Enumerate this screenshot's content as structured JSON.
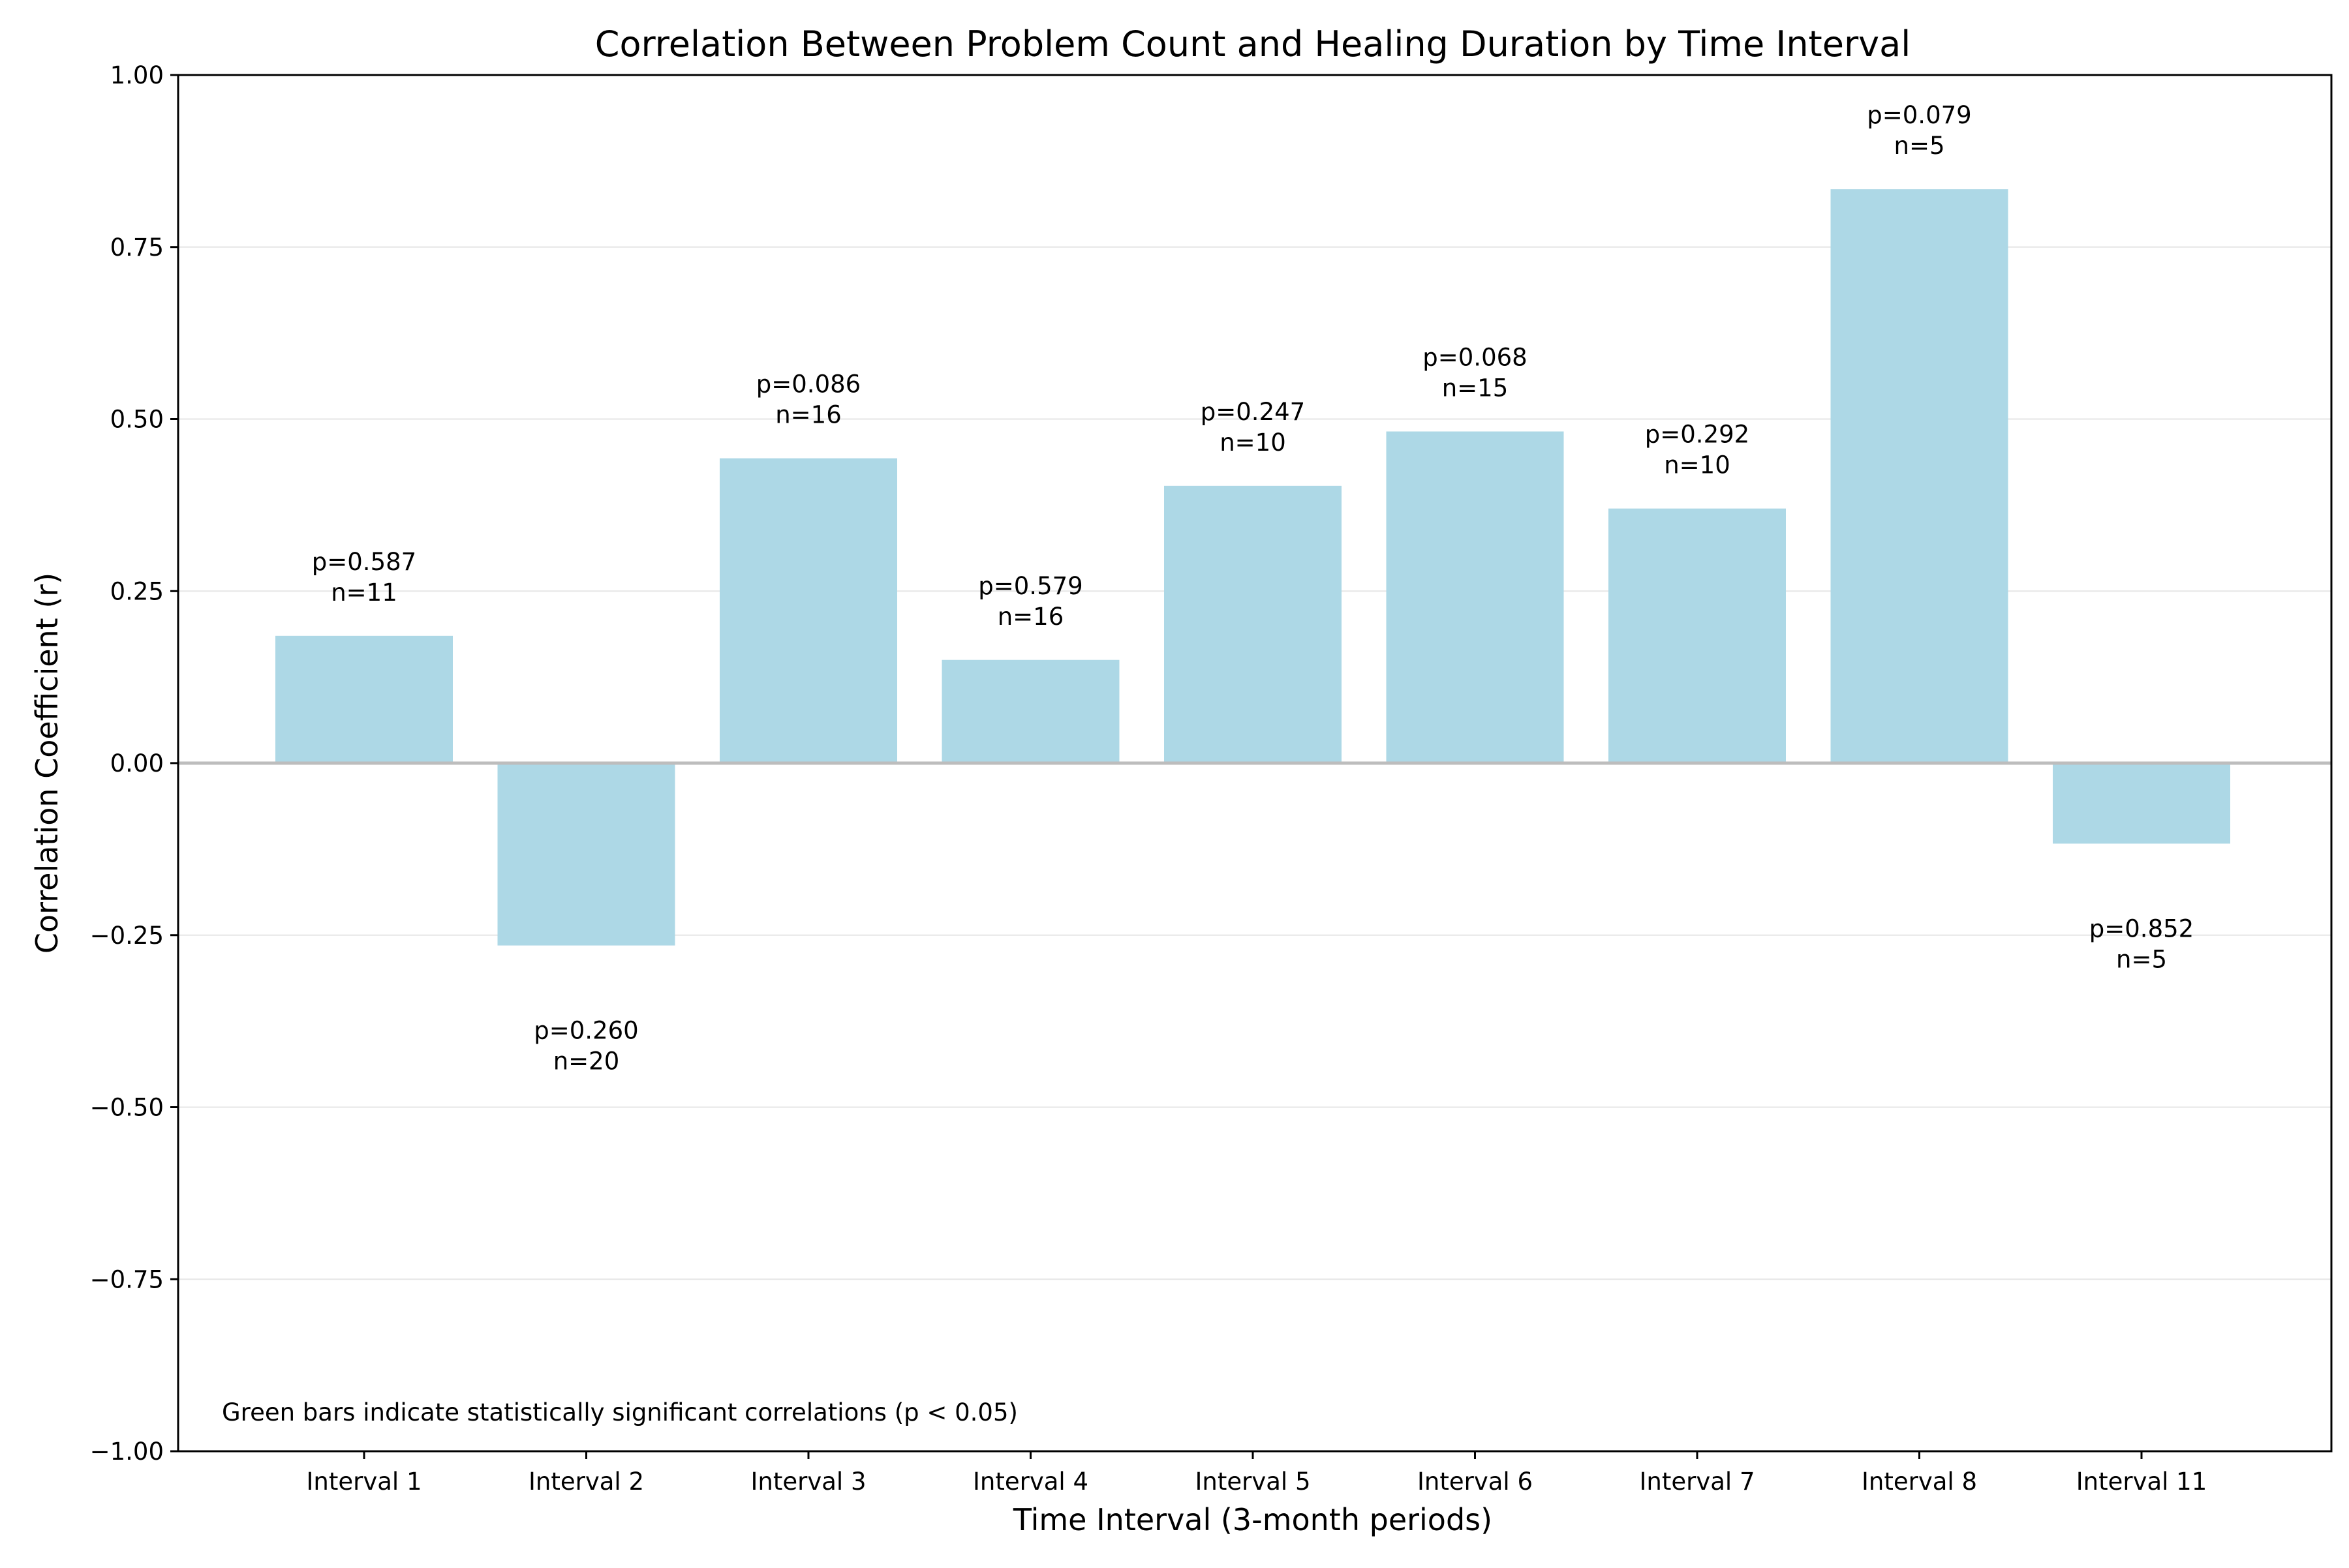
{
  "chart_data": {
    "type": "bar",
    "title": "Correlation Between Problem Count and Healing Duration by Time Interval",
    "xlabel": "Time Interval (3-month periods)",
    "ylabel": "Correlation Coefficient (r)",
    "ylim": [
      -1.0,
      1.0
    ],
    "yticks": [
      -1.0,
      -0.75,
      -0.5,
      -0.25,
      0.0,
      0.25,
      0.5,
      0.75,
      1.0
    ],
    "ytick_labels": [
      "−1.00",
      "−0.75",
      "−0.50",
      "−0.25",
      "0.00",
      "0.25",
      "0.50",
      "0.75",
      "1.00"
    ],
    "grid": "horizontal",
    "categories": [
      "Interval 1",
      "Interval 2",
      "Interval 3",
      "Interval 4",
      "Interval 5",
      "Interval 6",
      "Interval 7",
      "Interval 8",
      "Interval 11"
    ],
    "values": [
      0.185,
      -0.265,
      0.443,
      0.15,
      0.403,
      0.482,
      0.37,
      0.834,
      -0.117
    ],
    "p_labels": [
      "p=0.587",
      "p=0.260",
      "p=0.086",
      "p=0.579",
      "p=0.247",
      "p=0.068",
      "p=0.292",
      "p=0.079",
      "p=0.852"
    ],
    "n_labels": [
      "n=11",
      "n=20",
      "n=16",
      "n=16",
      "n=10",
      "n=15",
      "n=10",
      "n=5",
      "n=5"
    ],
    "annotation": "Green bars indicate statistically significant correlations (p < 0.05)",
    "colors": {
      "bar": "#add8e6",
      "zero_line": "#bdbdbd",
      "grid": "#e6e6e6",
      "axis": "#000000"
    }
  }
}
